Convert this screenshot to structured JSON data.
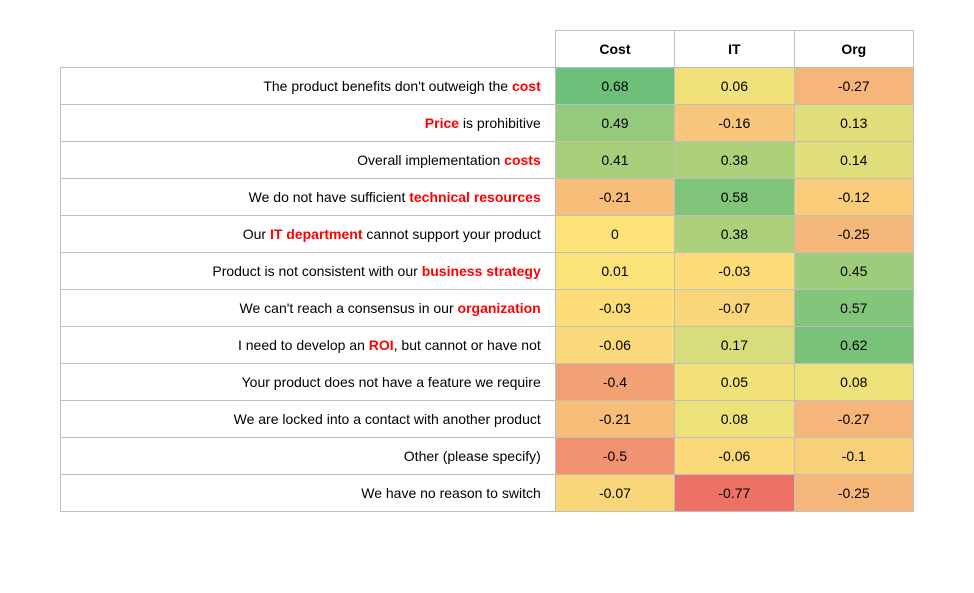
{
  "heatmap": {
    "type": "heatmap",
    "grid_color": "#bfbfbf",
    "background_color": "#ffffff",
    "header_fontweight": 700,
    "cell_font_color": "#000000",
    "font_family": "Helvetica Neue, Arial, sans-serif",
    "font_size_pt": 10,
    "highlight_color": "#ff0000",
    "row_label_align": "right",
    "value_align": "center",
    "column_widths": {
      "label_pct": 58,
      "data_pct": 14
    },
    "color_stops": [
      {
        "at": -0.8,
        "hex": "#ed6f64"
      },
      {
        "at": -0.5,
        "hex": "#f09172"
      },
      {
        "at": -0.25,
        "hex": "#f6b87a"
      },
      {
        "at": -0.1,
        "hex": "#f9d07a"
      },
      {
        "at": 0.0,
        "hex": "#fde37a"
      },
      {
        "at": 0.1,
        "hex": "#e9e07a"
      },
      {
        "at": 0.2,
        "hex": "#d2da7a"
      },
      {
        "at": 0.4,
        "hex": "#a9d07a"
      },
      {
        "at": 0.5,
        "hex": "#91c97b"
      },
      {
        "at": 0.7,
        "hex": "#6abe7a"
      }
    ],
    "columns": [
      "Cost",
      "IT",
      "Org"
    ],
    "rows": [
      {
        "label_segments": [
          {
            "text": "The product benefits don't outweigh the "
          },
          {
            "text": "cost",
            "highlight": true
          }
        ],
        "values": [
          0.68,
          0.06,
          -0.27
        ]
      },
      {
        "label_segments": [
          {
            "text": "Price",
            "highlight": true
          },
          {
            "text": " is prohibitive"
          }
        ],
        "values": [
          0.49,
          -0.16,
          0.13
        ]
      },
      {
        "label_segments": [
          {
            "text": "Overall implementation "
          },
          {
            "text": "costs",
            "highlight": true
          }
        ],
        "values": [
          0.41,
          0.38,
          0.14
        ]
      },
      {
        "label_segments": [
          {
            "text": "We do not have sufficient "
          },
          {
            "text": "technical resources",
            "highlight": true
          }
        ],
        "values": [
          -0.21,
          0.58,
          -0.12
        ]
      },
      {
        "label_segments": [
          {
            "text": "Our "
          },
          {
            "text": "IT department",
            "highlight": true
          },
          {
            "text": " cannot support your product"
          }
        ],
        "values": [
          0,
          0.38,
          -0.25
        ]
      },
      {
        "label_segments": [
          {
            "text": "Product is not consistent with our "
          },
          {
            "text": "business strategy",
            "highlight": true
          }
        ],
        "values": [
          0.01,
          -0.03,
          0.45
        ]
      },
      {
        "label_segments": [
          {
            "text": "We can't reach a consensus in our "
          },
          {
            "text": "organization",
            "highlight": true
          }
        ],
        "values": [
          -0.03,
          -0.07,
          0.57
        ]
      },
      {
        "label_segments": [
          {
            "text": "I need to develop an "
          },
          {
            "text": "ROI",
            "highlight": true
          },
          {
            "text": ", but cannot or have not"
          }
        ],
        "values": [
          -0.06,
          0.17,
          0.62
        ]
      },
      {
        "label_segments": [
          {
            "text": "Your product does not have a feature we require"
          }
        ],
        "values": [
          -0.4,
          0.05,
          0.08
        ]
      },
      {
        "label_segments": [
          {
            "text": "We are locked into a contact with another product"
          }
        ],
        "values": [
          -0.21,
          0.08,
          -0.27
        ]
      },
      {
        "label_segments": [
          {
            "text": "Other (please specify)"
          }
        ],
        "values": [
          -0.5,
          -0.06,
          -0.1
        ]
      },
      {
        "label_segments": [
          {
            "text": "We have no reason to switch"
          }
        ],
        "values": [
          -0.07,
          -0.77,
          -0.25
        ]
      }
    ]
  }
}
